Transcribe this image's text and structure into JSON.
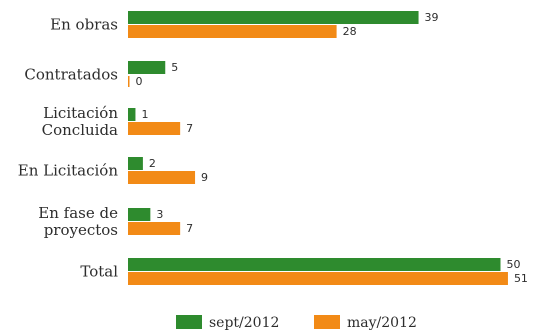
{
  "chart_data": {
    "type": "bar",
    "orientation": "horizontal",
    "categories": [
      [
        "En obras"
      ],
      [
        "Contratados"
      ],
      [
        "Licitación",
        "Concluida"
      ],
      [
        "En Licitación"
      ],
      [
        "En fase de",
        "proyectos"
      ],
      [
        "Total"
      ]
    ],
    "series": [
      {
        "name": "sept/2012",
        "color": "#2e8b2e",
        "values": [
          39,
          5,
          1,
          2,
          3,
          50
        ]
      },
      {
        "name": "may/2012",
        "color": "#f28a16",
        "values": [
          28,
          0,
          7,
          9,
          7,
          51
        ]
      }
    ],
    "xlim": [
      0,
      51
    ],
    "grid": false,
    "legend_position": "bottom"
  }
}
